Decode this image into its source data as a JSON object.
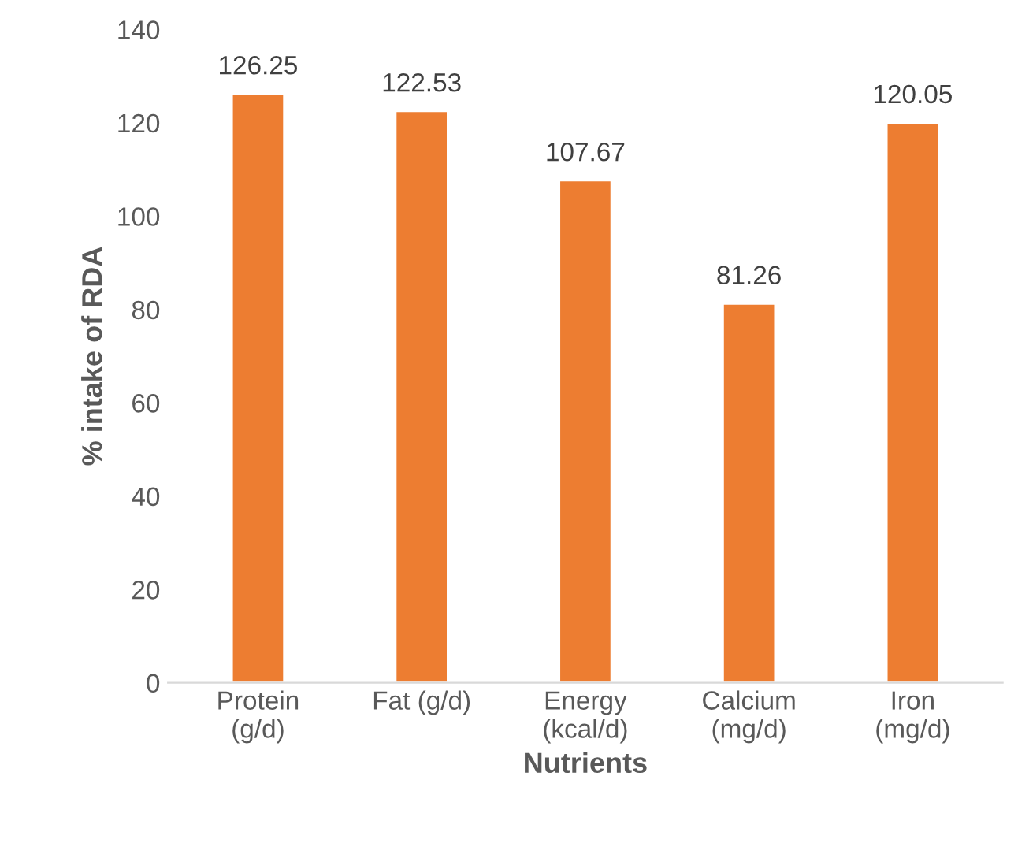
{
  "chart_data": {
    "type": "bar",
    "categories": [
      "Protein\n(g/d)",
      "Fat (g/d)",
      "Energy\n(kcal/d)",
      "Calcium\n(mg/d)",
      "Iron\n(mg/d)"
    ],
    "values": [
      126.25,
      122.53,
      107.67,
      81.26,
      120.05
    ],
    "color": "#ed7d31",
    "xlabel": "Nutrients",
    "ylabel": "% intake of RDA",
    "ylim": [
      0,
      140
    ],
    "yticks": [
      0,
      20,
      40,
      60,
      80,
      100,
      120,
      140
    ],
    "data_labels": true,
    "grid": false,
    "legend": false
  }
}
